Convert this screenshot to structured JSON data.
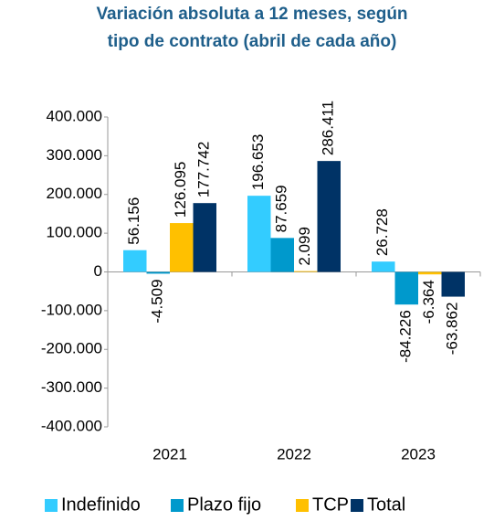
{
  "chart_data": {
    "type": "bar",
    "title": [
      "Variación absoluta a 12 meses, según",
      "tipo de contrato (abril de cada año)"
    ],
    "categories": [
      "2021",
      "2022",
      "2023"
    ],
    "series": [
      {
        "name": "Indefinido",
        "color": "#33ccff",
        "values": [
          56156,
          196653,
          26728
        ],
        "value_labels": [
          "56.156",
          "196.653",
          "26.728"
        ]
      },
      {
        "name": "Plazo fijo",
        "color": "#0099cc",
        "values": [
          -4509,
          87659,
          -84226
        ],
        "value_labels": [
          "-4.509",
          "87.659",
          "-84.226"
        ]
      },
      {
        "name": "TCP",
        "color": "#ffc000",
        "values": [
          126095,
          2099,
          -6364
        ],
        "value_labels": [
          "126.095",
          "2.099",
          "-6.364"
        ]
      },
      {
        "name": "Total",
        "color": "#003366",
        "values": [
          177742,
          286411,
          -63862
        ],
        "value_labels": [
          "177.742",
          "286.411",
          "-63.862"
        ]
      }
    ],
    "ylim": [
      -400000,
      400000
    ],
    "yticks": [
      {
        "value": -400000,
        "label": "-400.000"
      },
      {
        "value": -300000,
        "label": "-300.000"
      },
      {
        "value": -200000,
        "label": "-200.000"
      },
      {
        "value": -100000,
        "label": "-100.000"
      },
      0,
      {
        "value": 100000,
        "label": "100.000"
      },
      {
        "value": 200000,
        "label": "200.000"
      },
      {
        "value": 300000,
        "label": "300.000"
      },
      {
        "value": 400000,
        "label": "400.000"
      }
    ],
    "legend": "bottom",
    "grid": false
  }
}
